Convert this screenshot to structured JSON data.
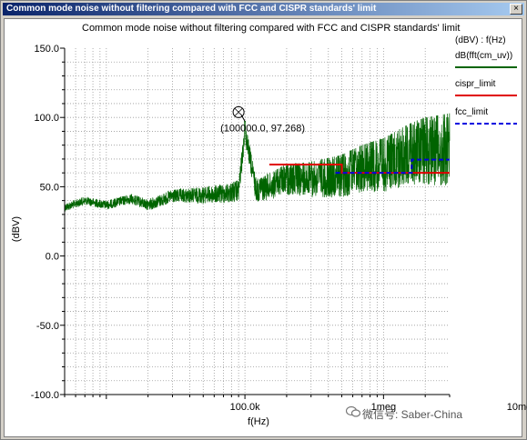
{
  "window": {
    "title": "Common mode noise without filtering compared with FCC and CISPR standards' limit",
    "close_glyph": "×"
  },
  "chart_data": {
    "type": "line",
    "title": "Common mode noise without filtering compared with FCC and CISPR standards' limit",
    "xlabel": "f(Hz)",
    "ylabel": "(dBV)",
    "x_scale": "log",
    "xlim": [
      5000,
      3000000
    ],
    "ylim": [
      -100,
      150
    ],
    "x_tick_labels": [
      {
        "value": 100000,
        "label": "100.0k"
      },
      {
        "value": 1000000,
        "label": "1meg"
      },
      {
        "value": 10000000,
        "label": "10meg"
      }
    ],
    "y_tick_labels": [
      {
        "value": 150,
        "label": "150.0"
      },
      {
        "value": 100,
        "label": "100.0"
      },
      {
        "value": 50,
        "label": "50.0"
      },
      {
        "value": 0,
        "label": "0.0"
      },
      {
        "value": -50,
        "label": "-50.0"
      },
      {
        "value": -100,
        "label": "-100.0"
      }
    ],
    "grid": true,
    "legend_position": "right",
    "legend_header": "(dBV) : f(Hz)",
    "series": [
      {
        "name": "dB(fft(cm_uv))",
        "color": "#006400",
        "style": "solid",
        "points": [
          [
            5000,
            38
          ],
          [
            7000,
            43
          ],
          [
            10000,
            40
          ],
          [
            15000,
            45
          ],
          [
            20000,
            41
          ],
          [
            30000,
            48
          ],
          [
            50000,
            50
          ],
          [
            70000,
            52
          ],
          [
            90000,
            55
          ],
          [
            100000,
            97.268
          ],
          [
            120000,
            57
          ],
          [
            150000,
            60
          ],
          [
            200000,
            66
          ],
          [
            300000,
            68
          ],
          [
            500000,
            73
          ],
          [
            700000,
            80
          ],
          [
            1000000,
            85
          ],
          [
            1500000,
            95
          ],
          [
            2000000,
            100
          ],
          [
            3000000,
            103
          ]
        ]
      },
      {
        "name": "cispr_limit",
        "color": "#e00000",
        "style": "solid",
        "points": [
          [
            150000,
            66
          ],
          [
            500000,
            66
          ],
          [
            500000,
            60
          ],
          [
            3000000,
            60
          ]
        ]
      },
      {
        "name": "fcc_limit",
        "color": "#0000e0",
        "style": "dashed",
        "points": [
          [
            450000,
            60
          ],
          [
            1600000,
            60
          ],
          [
            1600000,
            69.5
          ],
          [
            3000000,
            69.5
          ]
        ]
      }
    ],
    "annotations": [
      {
        "text": "(100000.0, 97.268)",
        "x": 100000,
        "y": 97.268
      }
    ]
  },
  "watermark": {
    "text": "微信号: Saber-China",
    "icon": "wechat-icon"
  }
}
